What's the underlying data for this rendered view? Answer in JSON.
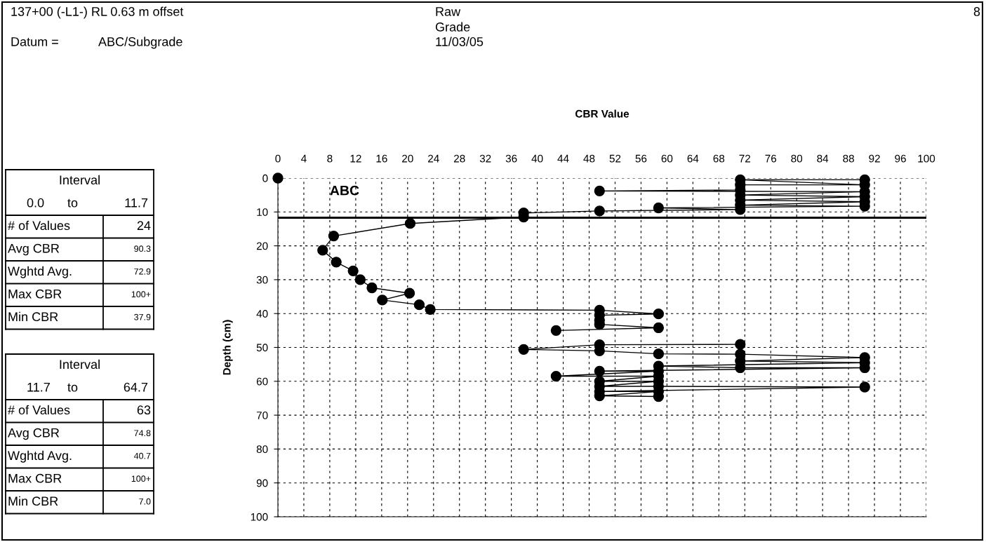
{
  "chart_data": {
    "type": "line",
    "title": "137+00 (-L1-) RL 0.63 m offset",
    "xlabel": "CBR Value",
    "ylabel": "Depth (cm)",
    "annotations": [
      "Datum =",
      "ABC/Subgrade",
      "Raw",
      "Grade",
      "11/03/05",
      "8",
      "ABC",
      "Interval",
      "0.0",
      "to",
      "11.7",
      "# of Values",
      "24",
      "Avg CBR",
      "90.3",
      "Wghtd Avg.",
      "72.9",
      "Max CBR",
      "100+",
      "Min CBR",
      "37.9",
      "Interval",
      "11.7",
      "to",
      "64.7",
      "# of Values",
      "63",
      "Avg CBR",
      "74.8",
      "Wghtd Avg.",
      "40.7",
      "Max CBR",
      "100+",
      "Min CBR",
      "7.0"
    ],
    "series": [
      {
        "color": "#000000",
        "x": [
          0,
          null,
          90.5,
          71.3,
          90.5,
          71.3,
          71.3,
          49.6,
          90.5,
          71.3,
          90.5,
          71.3,
          90.5,
          71.3,
          90.5,
          58.7,
          71.3,
          49.6,
          37.9,
          37.9,
          20.4,
          8.6,
          6.9,
          9.0,
          11.6,
          12.7,
          14.5,
          20.3,
          16.1,
          21.8,
          23.5,
          49.6,
          58.7,
          49.6,
          49.6,
          49.6,
          58.7,
          42.9,
          null,
          71.3,
          49.6,
          37.9,
          49.6,
          58.7,
          71.3,
          90.5,
          71.3,
          90.5,
          58.7,
          71.3,
          90.5,
          49.6,
          58.7,
          42.9,
          58.7,
          49.6,
          58.7,
          49.6,
          58.7,
          90.5,
          49.6,
          58.7,
          49.6,
          58.7
        ],
        "values": [
          0,
          null,
          0.5,
          0.5,
          2,
          2,
          3.5,
          3.8,
          4,
          5,
          5.5,
          6.5,
          7,
          8,
          8.3,
          8.8,
          9.3,
          9.7,
          10.3,
          11.5,
          13.4,
          17.1,
          21.3,
          24.8,
          27.4,
          30.0,
          32.4,
          34.0,
          36.0,
          37.4,
          38.8,
          39,
          40.1,
          40.5,
          42,
          43.2,
          44.2,
          45.0,
          null,
          49.1,
          49.2,
          50.6,
          51,
          51.9,
          52,
          53,
          54,
          54.5,
          55.5,
          56,
          56,
          57,
          57,
          58.5,
          58.5,
          60,
          60,
          61.5,
          61.5,
          61.7,
          63,
          63,
          64.3,
          64.5
        ]
      }
    ],
    "xlim": [
      0,
      100
    ],
    "xticks": [
      0,
      4,
      8,
      12,
      16,
      20,
      24,
      28,
      32,
      36,
      40,
      44,
      48,
      52,
      56,
      60,
      64,
      68,
      72,
      76,
      80,
      84,
      88,
      92,
      96,
      100
    ],
    "ylim": [
      100,
      0
    ],
    "yticks": [
      0,
      10,
      20,
      30,
      40,
      50,
      60,
      70,
      80,
      90,
      100
    ],
    "ref_lines": [
      {
        "axis": "y",
        "value": 11.7,
        "color": "#000000",
        "line_style": "solid"
      }
    ],
    "grid": true,
    "marker": "circle",
    "line_style": "solid",
    "legend": false
  }
}
